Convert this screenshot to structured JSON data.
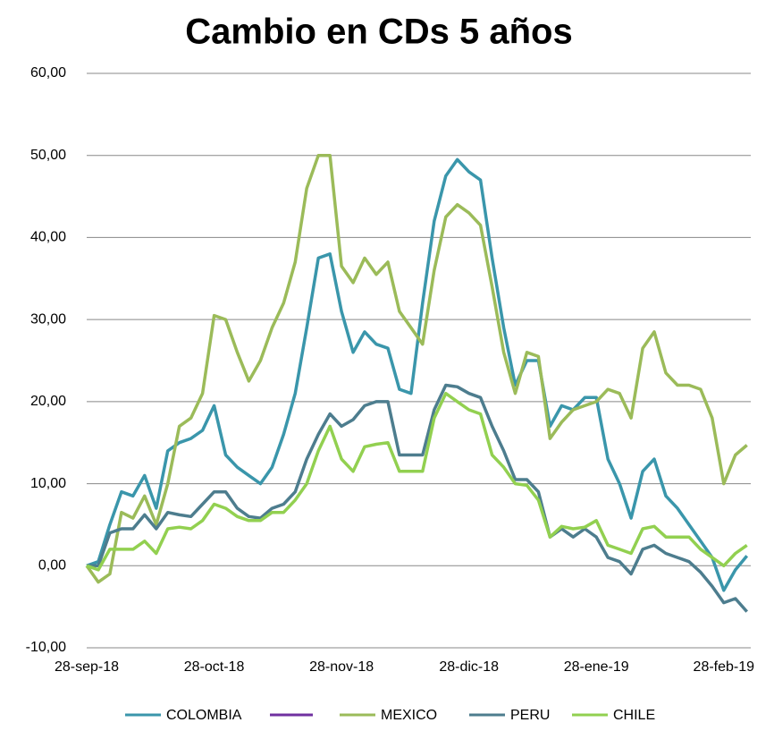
{
  "chart_data": {
    "type": "line",
    "title": "Cambio en CDs 5 años",
    "categories": [
      "28-sep-18",
      null,
      null,
      null,
      null,
      null,
      null,
      null,
      null,
      null,
      null,
      "28-oct-18",
      null,
      null,
      null,
      null,
      null,
      null,
      null,
      null,
      null,
      null,
      "28-nov-18",
      null,
      null,
      null,
      null,
      null,
      null,
      null,
      null,
      null,
      null,
      "28-dic-18",
      null,
      null,
      null,
      null,
      null,
      null,
      null,
      null,
      null,
      null,
      "28-ene-19",
      null,
      null,
      null,
      null,
      null,
      null,
      null,
      null,
      null,
      null,
      "28-feb-19",
      null,
      null
    ],
    "series": [
      {
        "name": "COLOMBIA",
        "color": "#3a96ab",
        "values": [
          0,
          0.5,
          5,
          9,
          8.5,
          11,
          7,
          14,
          15,
          15.5,
          16.5,
          19.5,
          13.5,
          12,
          11,
          10,
          12,
          16,
          21,
          29,
          37.5,
          38,
          31,
          26,
          28.5,
          27,
          26.5,
          21.5,
          21,
          32,
          42,
          47.5,
          49.5,
          48,
          47,
          37.5,
          29,
          22,
          25,
          25,
          17,
          19.5,
          19,
          20.5,
          20.5,
          13,
          10,
          5.8,
          11.5,
          13,
          8.5,
          7,
          5,
          3,
          1,
          -3,
          -0.5,
          1.2
        ]
      },
      {
        "name": "MEXICO",
        "color": "#9bbb59",
        "values": [
          0,
          -2,
          -1,
          6.5,
          5.8,
          8.5,
          5,
          10,
          17,
          18,
          21,
          30.5,
          30,
          26,
          22.5,
          25,
          29,
          32,
          37,
          46,
          50,
          50,
          36.5,
          34.5,
          37.5,
          35.5,
          37,
          31,
          29,
          27,
          36,
          42.5,
          44,
          43,
          41.5,
          34,
          26,
          21,
          26,
          25.5,
          15.5,
          17.5,
          19,
          19.5,
          20,
          21.5,
          21,
          18,
          26.5,
          28.5,
          23.5,
          22,
          22,
          21.5,
          18,
          10,
          13.5,
          14.7
        ]
      },
      {
        "name": "PERU",
        "color": "#4d7d8e",
        "values": [
          0,
          0,
          4,
          4.5,
          4.5,
          6.2,
          4.5,
          6.5,
          6.2,
          6,
          7.5,
          9,
          9,
          7,
          6,
          5.8,
          7,
          7.5,
          9,
          13,
          16,
          18.5,
          17,
          17.8,
          19.5,
          20,
          20,
          13.5,
          13.5,
          13.5,
          19,
          22,
          21.8,
          21,
          20.5,
          17,
          14,
          10.5,
          10.5,
          9,
          3.5,
          4.5,
          3.5,
          4.5,
          3.5,
          1,
          0.5,
          -1,
          2,
          2.5,
          1.5,
          1,
          0.5,
          -0.8,
          -2.5,
          -4.5,
          -4,
          -5.6
        ]
      },
      {
        "name": "CHILE",
        "color": "#92d050",
        "values": [
          0,
          -0.5,
          2,
          2,
          2,
          3,
          1.5,
          4.5,
          4.7,
          4.5,
          5.5,
          7.5,
          7,
          6,
          5.5,
          5.5,
          6.5,
          6.5,
          8,
          10,
          14,
          17,
          13,
          11.5,
          14.5,
          14.8,
          15,
          11.5,
          11.5,
          11.5,
          18,
          21,
          20,
          19,
          18.5,
          13.5,
          12,
          10,
          9.8,
          8,
          3.5,
          4.8,
          4.5,
          4.7,
          5.5,
          2.5,
          2,
          1.5,
          4.5,
          4.8,
          3.5,
          3.5,
          3.5,
          2,
          1,
          0,
          1.5,
          2.5
        ]
      }
    ],
    "ylim": [
      -10,
      60
    ],
    "yticks": [
      {
        "value": -10,
        "label": "-10,00"
      },
      {
        "value": 0,
        "label": "0,00"
      },
      {
        "value": 10,
        "label": "10,00"
      },
      {
        "value": 20,
        "label": "20,00"
      },
      {
        "value": 30,
        "label": "30,00"
      },
      {
        "value": 40,
        "label": "40,00"
      },
      {
        "value": 50,
        "label": "50,00"
      },
      {
        "value": 60,
        "label": "60,00"
      }
    ],
    "grid": true
  }
}
